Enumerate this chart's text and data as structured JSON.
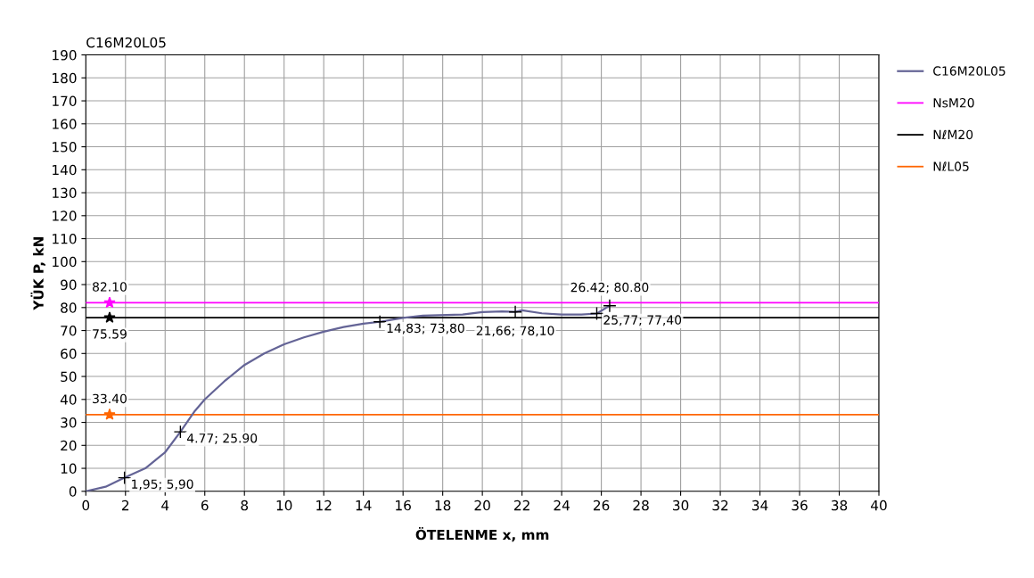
{
  "chart_data": {
    "type": "line",
    "title": "C16M20L05",
    "xlabel": "ÖTELENME x, mm",
    "ylabel": "YÜK P, kN",
    "xlim": [
      0,
      40
    ],
    "xticks": [
      0,
      2,
      4,
      6,
      8,
      10,
      12,
      14,
      16,
      18,
      20,
      22,
      24,
      26,
      28,
      30,
      32,
      34,
      36,
      38,
      40
    ],
    "ylim": [
      0,
      190
    ],
    "yticks": [
      0,
      10,
      20,
      30,
      40,
      50,
      60,
      70,
      80,
      90,
      100,
      110,
      120,
      130,
      140,
      150,
      160,
      170,
      180,
      190
    ],
    "grid": true,
    "legend": "right",
    "marker": "none",
    "line_style": "solid",
    "series": [
      {
        "name": "C16M20L05",
        "color": "#646496",
        "x": [
          0,
          1,
          1.95,
          3,
          4,
          4.77,
          5.5,
          6,
          7,
          8,
          9,
          10,
          11,
          12,
          13,
          14,
          14.83,
          16,
          17,
          19,
          20,
          21,
          21.66,
          22,
          23,
          24,
          25,
          25.77,
          26.42
        ],
        "values": [
          0,
          2,
          5.9,
          10,
          17,
          25.9,
          35,
          40,
          48,
          55,
          60,
          64,
          67,
          69.5,
          71.5,
          73,
          73.8,
          75.5,
          76.5,
          77,
          78,
          78.3,
          78.1,
          78.8,
          77.5,
          77,
          77,
          77.4,
          80.8
        ]
      },
      {
        "name": "NsM20",
        "color": "#ff00ff",
        "x": [
          0,
          40
        ],
        "values": [
          82.1,
          82.1
        ]
      },
      {
        "name": "NℓM20",
        "color": "#000000",
        "x": [
          0,
          40
        ],
        "values": [
          75.59,
          75.59
        ]
      },
      {
        "name": "NℓL05",
        "color": "#ff6600",
        "x": [
          0,
          40
        ],
        "values": [
          33.4,
          33.4
        ]
      }
    ],
    "annotations": [
      {
        "text": "82.10",
        "x": 1.2,
        "y": 82.1
      },
      {
        "text": "75.59",
        "x": 1.2,
        "y": 75.59
      },
      {
        "text": "33.40",
        "x": 1.2,
        "y": 33.4
      },
      {
        "text": "1,95; 5,90",
        "x": 1.95,
        "y": 5.9
      },
      {
        "text": "4.77; 25.90",
        "x": 4.77,
        "y": 25.9
      },
      {
        "text": "14,83; 73,80",
        "x": 14.83,
        "y": 73.8
      },
      {
        "text": "21,66; 78,10",
        "x": 21.66,
        "y": 78.1
      },
      {
        "text": "25,77; 77,40",
        "x": 25.77,
        "y": 77.4
      },
      {
        "text": "26.42; 80.80",
        "x": 26.42,
        "y": 80.8
      }
    ]
  }
}
